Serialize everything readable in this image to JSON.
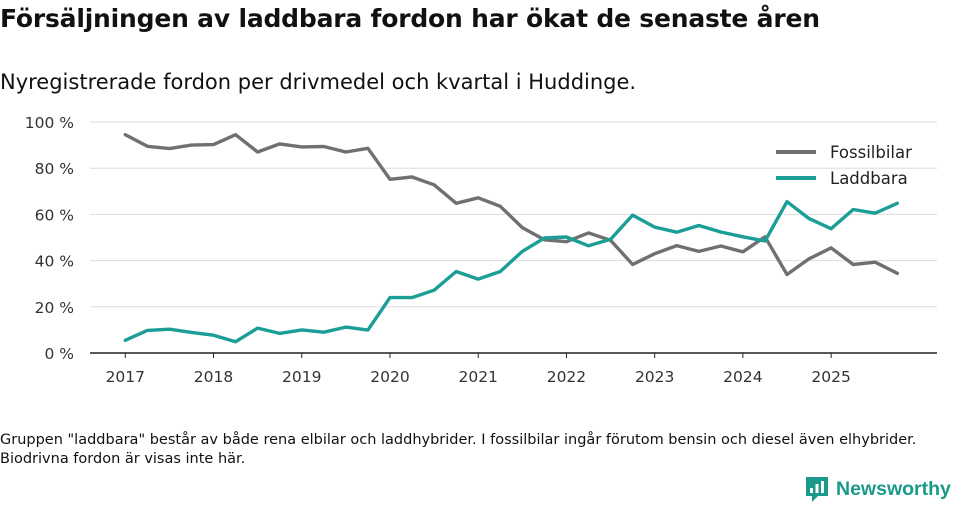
{
  "title": "Försäljningen av laddbara fordon har ökat de senaste åren",
  "subtitle": "Nyregistrerade fordon per drivmedel och kvartal i Huddinge.",
  "note": "Gruppen \"laddbara\" består av både rena elbilar och laddhybrider. I fossilbilar ingår förutom bensin och diesel även elhybrider. Biodrivna fordon är visas inte här.",
  "brand": "Newsworthy",
  "colors": {
    "fossil": "#707070",
    "laddbara": "#1a9e96",
    "grid": "#dddddd",
    "axis": "#222222",
    "brand": "#1a9a8a"
  },
  "chart_data": {
    "type": "line",
    "title": "Försäljningen av laddbara fordon har ökat de senaste åren",
    "xlabel": "",
    "ylabel": "",
    "x_start": 2017,
    "step": 0.25,
    "xlim": [
      2016.6,
      2026.2
    ],
    "ylim": [
      0,
      100
    ],
    "grid": true,
    "legend_position": "top-right",
    "x_tick_labels": [
      "2017",
      "2018",
      "2019",
      "2020",
      "2021",
      "2022",
      "2023",
      "2024",
      "2025"
    ],
    "y_tick_labels": [
      "0 %",
      "20 %",
      "40 %",
      "60 %",
      "80 %",
      "100 %"
    ],
    "y_ticks": [
      0,
      20,
      40,
      60,
      80,
      100
    ],
    "series": [
      {
        "name": "Fossilbilar",
        "color": "#707070",
        "values": [
          94.5,
          89.5,
          88.5,
          90,
          90.2,
          94.5,
          87,
          90.5,
          89.2,
          89.4,
          87,
          88.6,
          75.2,
          76.2,
          72.8,
          64.8,
          67.2,
          63.5,
          54.3,
          49,
          48.2,
          52,
          48.8,
          38.3,
          43,
          46.5,
          44,
          46.3,
          43.8,
          50.3,
          34,
          40.8,
          45.5,
          38.3,
          39.3,
          34.5
        ]
      },
      {
        "name": "Laddbara",
        "color": "#1a9e96",
        "values": [
          5.5,
          9.8,
          10.3,
          8.9,
          7.7,
          4.9,
          10.8,
          8.5,
          10,
          9,
          11.2,
          9.9,
          24,
          24,
          27.2,
          35.3,
          32,
          35.3,
          44,
          49.8,
          50.2,
          46.4,
          49.2,
          59.7,
          54.5,
          52.3,
          55.2,
          52.4,
          50.3,
          48.5,
          65.5,
          58.2,
          53.8,
          62.1,
          60.5,
          64.8
        ]
      }
    ]
  }
}
